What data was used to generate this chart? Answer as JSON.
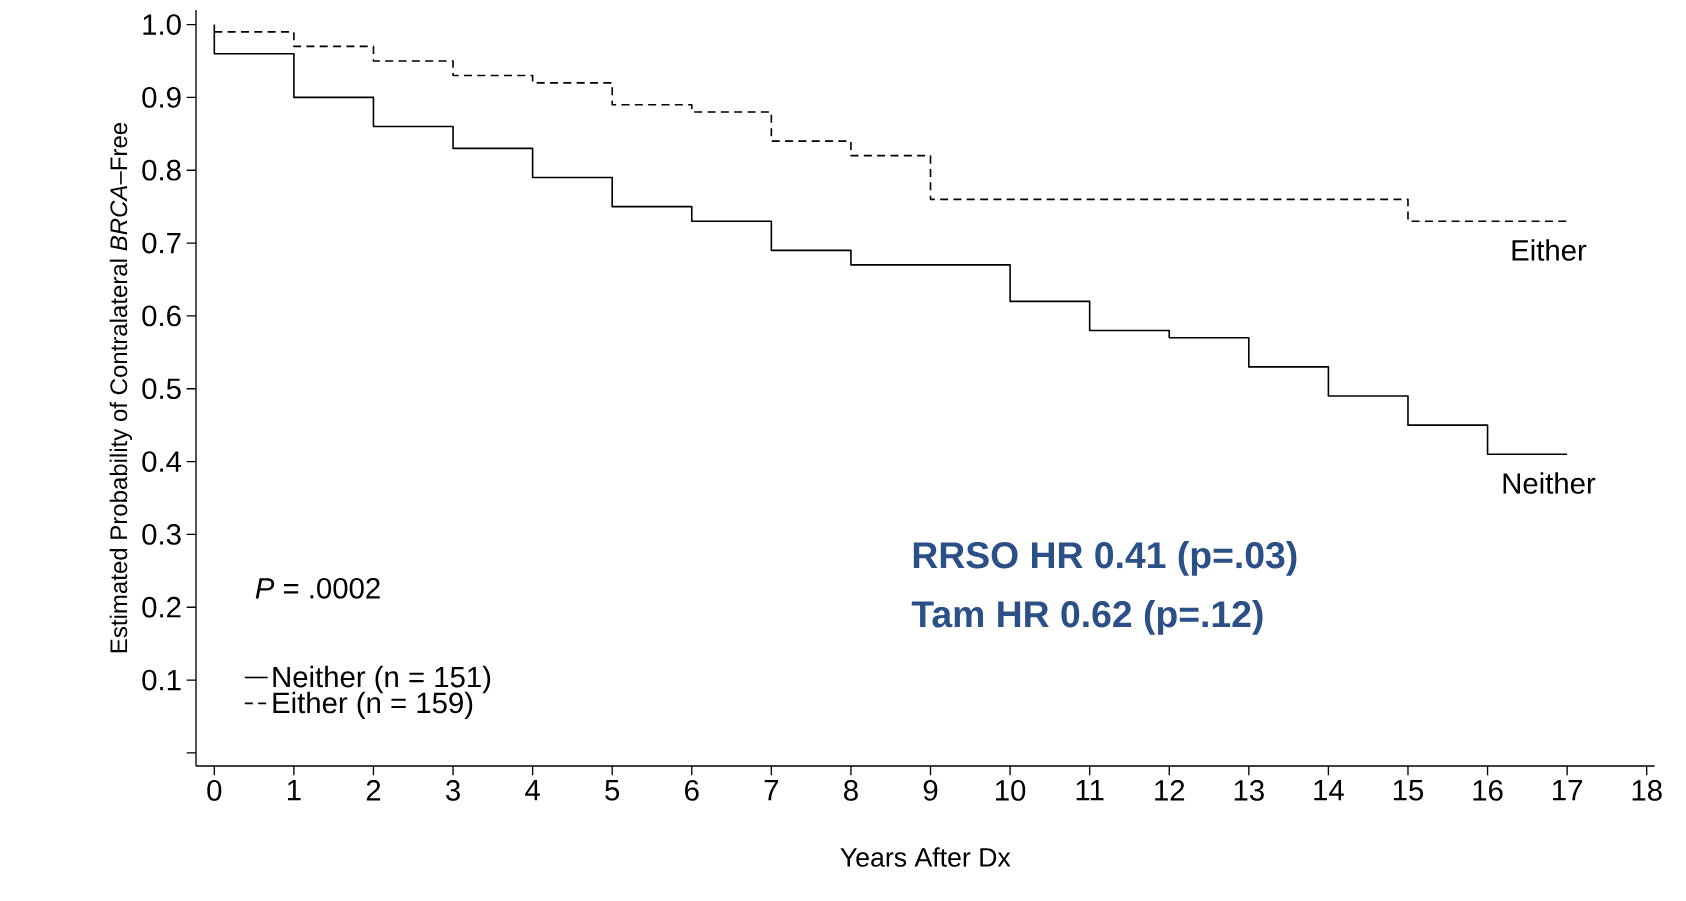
{
  "chart_data": {
    "type": "step",
    "xlabel": "Years After Dx",
    "ylabel": "Estimated Probability of Contralateral *BRCA*–Free",
    "xlim": [
      -0.23,
      18.1
    ],
    "ylim": [
      -0.018,
      1.02
    ],
    "xticks": [
      0,
      1,
      2,
      3,
      4,
      5,
      6,
      7,
      8,
      9,
      10,
      11,
      12,
      13,
      14,
      15,
      16,
      17,
      18
    ],
    "yticks": [
      {
        "value": 0,
        "label": null
      },
      0.1,
      0.2,
      0.3,
      0.4,
      0.5,
      0.6,
      0.7,
      0.8,
      0.9,
      {
        "value": 1,
        "label": "1.0"
      }
    ],
    "grid": false,
    "legend": "bottom left",
    "series": [
      {
        "name": "Neither (n = 151)",
        "color": "#000000",
        "line_style": "solid",
        "x": [
          0,
          0,
          1,
          2,
          3,
          4,
          5,
          6,
          7,
          8,
          10,
          11,
          12,
          13,
          14,
          15,
          16,
          17
        ],
        "values": [
          1.0,
          0.96,
          0.9,
          0.86,
          0.83,
          0.79,
          0.75,
          0.73,
          0.69,
          0.67,
          0.62,
          0.58,
          0.57,
          0.53,
          0.49,
          0.45,
          0.41,
          0.41
        ]
      },
      {
        "name": "Either (n = 159)",
        "color": "#000000",
        "line_style": "dashed",
        "x": [
          0,
          1,
          2,
          3,
          4,
          5,
          6,
          7,
          8,
          9,
          15,
          17
        ],
        "values": [
          0.99,
          0.97,
          0.95,
          0.93,
          0.92,
          0.89,
          0.88,
          0.84,
          0.82,
          0.76,
          0.73,
          0.73
        ]
      }
    ],
    "annotations": [
      "*P* = .0002",
      "RRSO HR 0.41 (p=.03)",
      "Tam HR 0.62 (p=.12)",
      {
        "text": "Either",
        "x": 17,
        "y": 0.73
      },
      {
        "text": "Neither",
        "x": 17,
        "y": 0.41
      }
    ]
  }
}
